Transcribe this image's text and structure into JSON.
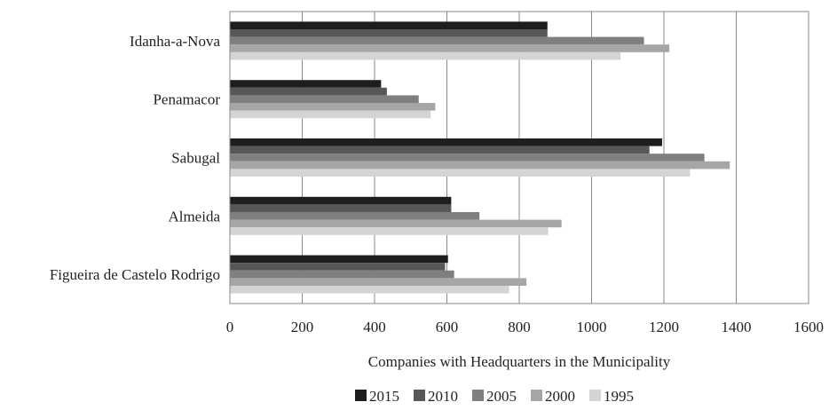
{
  "chart_data": {
    "type": "bar",
    "orientation": "horizontal",
    "categories": [
      "Idanha-a-Nova",
      "Penamacor",
      "Sabugal",
      "Almeida",
      "Figueira de Castelo Rodrigo"
    ],
    "series": [
      {
        "name": "2015",
        "color": "#1e1e1e",
        "values": [
          878,
          418,
          1195,
          612,
          603
        ]
      },
      {
        "name": "2010",
        "color": "#575757",
        "values": [
          878,
          434,
          1160,
          612,
          595
        ]
      },
      {
        "name": "2005",
        "color": "#7f7f7f",
        "values": [
          1145,
          522,
          1312,
          690,
          620
        ]
      },
      {
        "name": "2000",
        "color": "#a6a6a6",
        "values": [
          1215,
          568,
          1382,
          917,
          820
        ]
      },
      {
        "name": "1995",
        "color": "#d4d4d4",
        "values": [
          1080,
          555,
          1272,
          880,
          772
        ]
      }
    ],
    "xlim": [
      0,
      1600
    ],
    "xticks": [
      "0",
      "200",
      "400",
      "600",
      "800",
      "1000",
      "1200",
      "1400",
      "1600"
    ],
    "xlabel": "Companies with Headquarters in the Municipality",
    "ylabel": "",
    "title": "",
    "grid": "vertical",
    "legend": "bottom-center"
  }
}
